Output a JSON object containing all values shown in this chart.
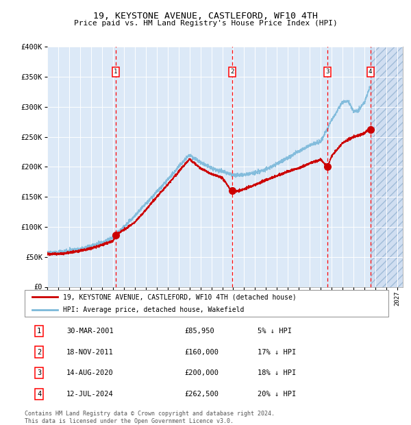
{
  "title": "19, KEYSTONE AVENUE, CASTLEFORD, WF10 4TH",
  "subtitle": "Price paid vs. HM Land Registry's House Price Index (HPI)",
  "bg_color": "#dce9f7",
  "hpi_color": "#7ab8d9",
  "price_color": "#cc0000",
  "purchase_year_floats": [
    2001.245,
    2011.885,
    2020.617,
    2024.535
  ],
  "purchase_prices": [
    85950,
    160000,
    200000,
    262500
  ],
  "purchase_labels": [
    "1",
    "2",
    "3",
    "4"
  ],
  "table_rows": [
    [
      "1",
      "30-MAR-2001",
      "£85,950",
      "5% ↓ HPI"
    ],
    [
      "2",
      "18-NOV-2011",
      "£160,000",
      "17% ↓ HPI"
    ],
    [
      "3",
      "14-AUG-2020",
      "£200,000",
      "18% ↓ HPI"
    ],
    [
      "4",
      "12-JUL-2024",
      "£262,500",
      "20% ↓ HPI"
    ]
  ],
  "legend_entries": [
    "19, KEYSTONE AVENUE, CASTLEFORD, WF10 4TH (detached house)",
    "HPI: Average price, detached house, Wakefield"
  ],
  "footnote": "Contains HM Land Registry data © Crown copyright and database right 2024.\nThis data is licensed under the Open Government Licence v3.0.",
  "xmin": 1995.0,
  "xmax": 2027.5,
  "ymin": 0,
  "ymax": 400000,
  "yticks": [
    0,
    50000,
    100000,
    150000,
    200000,
    250000,
    300000,
    350000,
    400000
  ],
  "ytick_labels": [
    "£0",
    "£50K",
    "£100K",
    "£150K",
    "£200K",
    "£250K",
    "£300K",
    "£350K",
    "£400K"
  ],
  "future_start": 2024.54,
  "hpi_anchors_x": [
    1995,
    1996,
    1997,
    1998,
    1999,
    2000,
    2001,
    2002,
    2003,
    2004,
    2005,
    2006,
    2007,
    2008,
    2009,
    2010,
    2011,
    2012,
    2013,
    2014,
    2015,
    2016,
    2017,
    2018,
    2019,
    2020,
    2021,
    2022,
    2022.5,
    2023,
    2023.5,
    2024,
    2024.54
  ],
  "hpi_anchors_y": [
    57000,
    57500,
    60000,
    63000,
    68000,
    74000,
    82000,
    100000,
    118000,
    138000,
    158000,
    178000,
    200000,
    220000,
    207000,
    198000,
    192000,
    186000,
    187000,
    190000,
    196000,
    205000,
    215000,
    226000,
    236000,
    242000,
    278000,
    308000,
    310000,
    292000,
    295000,
    308000,
    335000
  ],
  "price_anchors_x": [
    1995,
    1996,
    1997,
    1998,
    1999,
    2000,
    2001,
    2001.25,
    2002,
    2003,
    2004,
    2005,
    2006,
    2007,
    2008,
    2009,
    2010,
    2011,
    2011.9,
    2012,
    2013,
    2014,
    2015,
    2016,
    2017,
    2018,
    2019,
    2020,
    2020.62,
    2021,
    2022,
    2023,
    2024,
    2024.54
  ],
  "price_anchors_y": [
    55000,
    55000,
    57000,
    60000,
    64000,
    70000,
    76000,
    86000,
    95000,
    108000,
    128000,
    150000,
    170000,
    192000,
    213000,
    198000,
    188000,
    182000,
    158000,
    158000,
    163000,
    170000,
    178000,
    185000,
    192000,
    198000,
    206000,
    212000,
    200000,
    218000,
    240000,
    250000,
    256000,
    265000
  ]
}
